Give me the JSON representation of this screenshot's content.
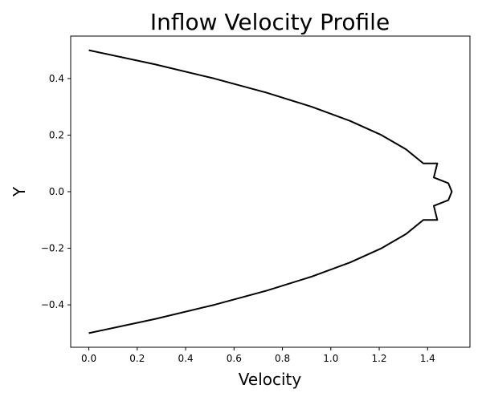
{
  "chart_data": {
    "type": "line",
    "title": "Inflow Velocity Profile",
    "xlabel": "Velocity",
    "ylabel": "Y",
    "xlim": [
      -0.075,
      1.575
    ],
    "ylim": [
      -0.55,
      0.55
    ],
    "x_ticks": [
      0.0,
      0.2,
      0.4,
      0.6,
      0.8,
      1.0,
      1.2,
      1.4
    ],
    "x_tick_labels": [
      "0.0",
      "0.2",
      "0.4",
      "0.6",
      "0.8",
      "1.0",
      "1.2",
      "1.4"
    ],
    "y_ticks": [
      -0.4,
      -0.2,
      0.0,
      0.2,
      0.4
    ],
    "y_tick_labels": [
      "−0.4",
      "−0.2",
      "0.0",
      "0.2",
      "0.4"
    ],
    "grid": false,
    "series": [
      {
        "color": "#000000",
        "x": [
          0.0,
          0.2736,
          0.5184,
          0.7344,
          0.9216,
          1.08,
          1.2096,
          1.3104,
          1.3824,
          1.4256,
          1.44,
          1.4856,
          1.5,
          1.4856,
          1.44,
          1.4256,
          1.3824,
          1.3104,
          1.2096,
          1.08,
          0.9216,
          0.7344,
          0.5184,
          0.2736,
          0.0
        ],
        "y": [
          -0.5,
          -0.45,
          -0.4,
          -0.35,
          -0.3,
          -0.25,
          -0.2,
          -0.15,
          -0.1,
          -0.05,
          -0.1,
          -0.03,
          0.0,
          0.03,
          0.1,
          0.05,
          0.1,
          0.15,
          0.2,
          0.25,
          0.3,
          0.35,
          0.4,
          0.45,
          0.5
        ]
      }
    ]
  }
}
